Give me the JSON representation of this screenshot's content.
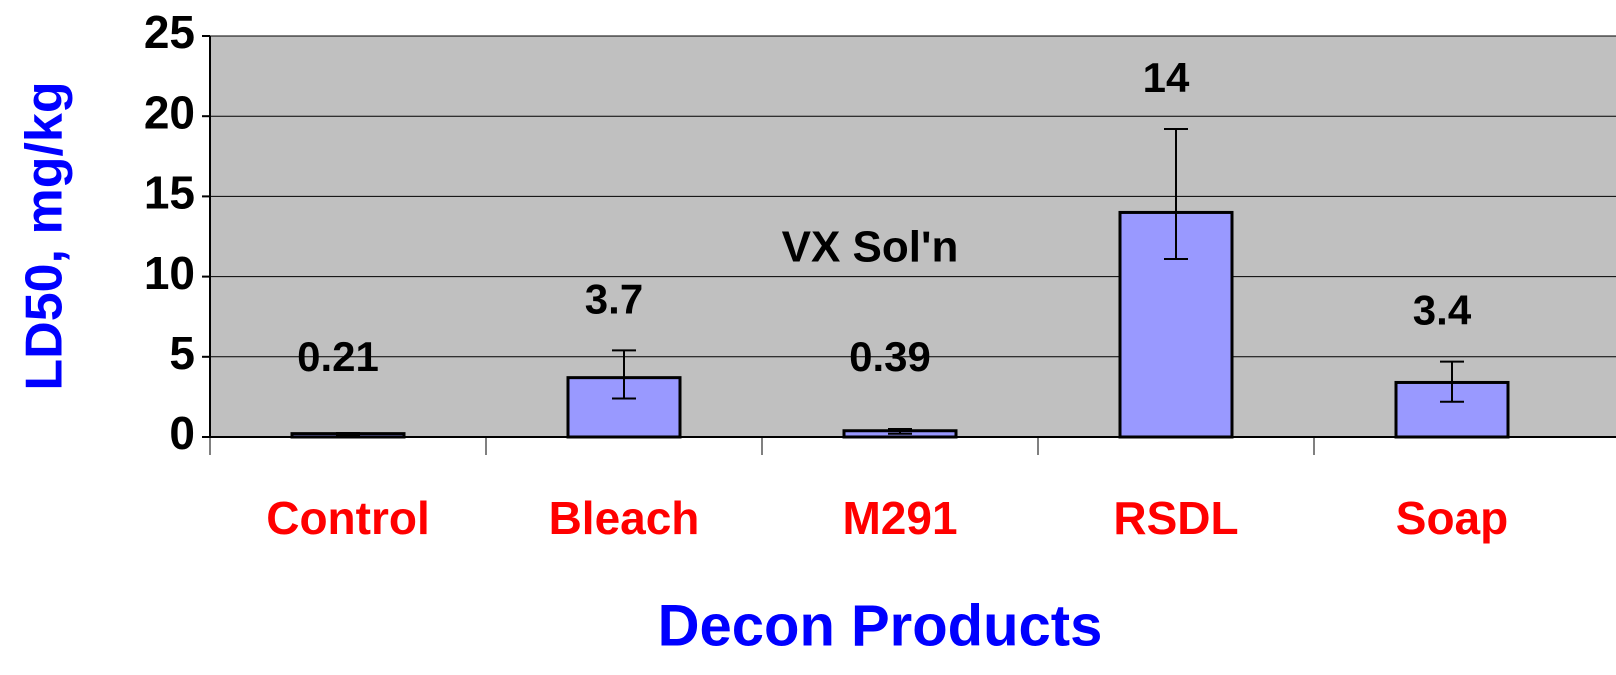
{
  "chart_data": {
    "type": "bar",
    "ylabel": "LD50, mg/kg",
    "xlabel": "Decon Products",
    "annotation": "VX Sol'n",
    "categories": [
      "Control",
      "Bleach",
      "M291",
      "RSDL",
      "Soap"
    ],
    "values": [
      0.21,
      3.7,
      0.39,
      14,
      3.4
    ],
    "ci_low": [
      0.15,
      2.4,
      0.2,
      11.1,
      2.2
    ],
    "ci_high": [
      0.25,
      5.4,
      0.5,
      19.2,
      4.7
    ],
    "color": "#9999ff",
    "ylim": [
      0,
      25
    ],
    "yticks": [
      0,
      5,
      10,
      15,
      20,
      25
    ],
    "grid": true
  }
}
